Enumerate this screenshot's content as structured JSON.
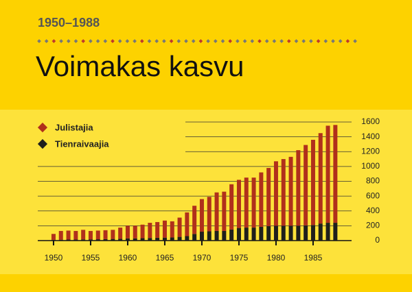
{
  "chart_data": {
    "type": "bar",
    "subtitle": "1950–1988",
    "title": "Voimakas kasvu",
    "x": [
      1950,
      1951,
      1952,
      1953,
      1954,
      1955,
      1956,
      1957,
      1958,
      1959,
      1960,
      1961,
      1962,
      1963,
      1964,
      1965,
      1966,
      1967,
      1968,
      1969,
      1970,
      1971,
      1972,
      1973,
      1974,
      1975,
      1976,
      1977,
      1978,
      1979,
      1980,
      1981,
      1982,
      1983,
      1984,
      1985,
      1986,
      1987,
      1988
    ],
    "series": [
      {
        "name": "Tienraivaajia",
        "color": "#1f1f1c",
        "values": [
          10,
          12,
          14,
          15,
          16,
          17,
          18,
          20,
          22,
          25,
          30,
          30,
          32,
          35,
          38,
          40,
          42,
          50,
          60,
          90,
          120,
          125,
          130,
          130,
          150,
          170,
          175,
          175,
          185,
          195,
          200,
          200,
          200,
          200,
          205,
          210,
          230,
          240,
          240
        ]
      },
      {
        "name": "Julistajia",
        "color": "#b0301b",
        "values": [
          80,
          118,
          121,
          115,
          129,
          113,
          117,
          120,
          123,
          150,
          170,
          170,
          183,
          205,
          212,
          230,
          218,
          260,
          320,
          380,
          440,
          465,
          520,
          530,
          610,
          650,
          675,
          675,
          735,
          785,
          870,
          900,
          930,
          1020,
          1085,
          1150,
          1220,
          1310,
          1320
        ]
      }
    ],
    "xlim": [
      1948.8,
      1988.8
    ],
    "xticks": [
      1950,
      1955,
      1960,
      1965,
      1970,
      1975,
      1980,
      1985
    ],
    "ylim": [
      0,
      1600
    ],
    "yticks": [
      0,
      200,
      400,
      600,
      800,
      1000,
      1200,
      1400,
      1600
    ],
    "grid": true,
    "stacked": true
  }
}
